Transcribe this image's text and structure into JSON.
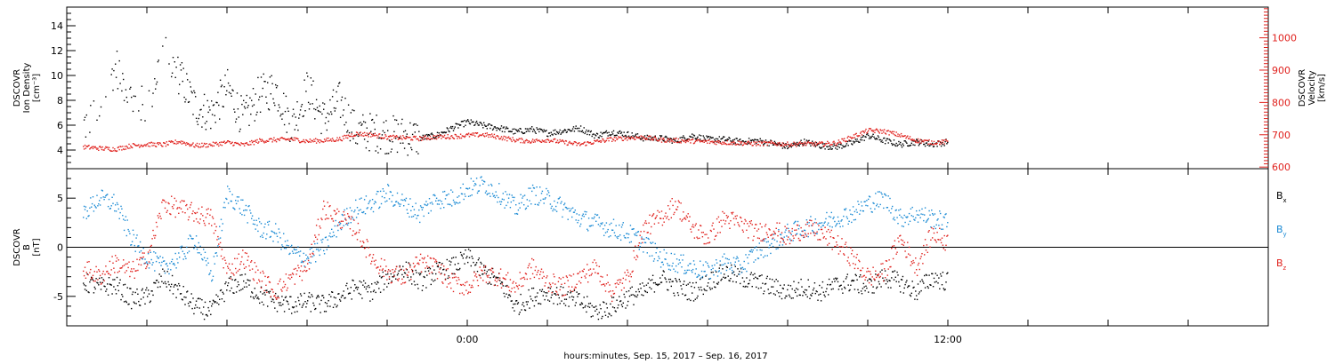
{
  "chart_data": [
    {
      "type": "scatter",
      "panel": "plasma",
      "ylabel_lines": [
        "DSCOVR",
        "Ion Density",
        "[cm⁻³]"
      ],
      "ylim": [
        2.5,
        15.5
      ],
      "yticks": [
        4,
        6,
        8,
        10,
        12,
        14
      ],
      "ylabel_right_lines": [
        "DSCOVR",
        "Velocity",
        "[km/s]"
      ],
      "ylim_right": [
        595,
        1095
      ],
      "yticks_right": [
        600,
        700,
        800,
        900,
        1000
      ],
      "series": [
        {
          "name": "",
          "axis": "left",
          "color": "#000000",
          "x": [
            -12.0,
            -11.5,
            -11.0,
            -10.5,
            -10.0,
            -9.5,
            -9.0,
            -8.5,
            -8.0,
            -7.5,
            -7.0,
            -6.5,
            -6.0,
            -5.5,
            -5.0,
            -4.5,
            -4.0,
            -3.5,
            -3.0,
            -2.5,
            -2.0,
            -1.5,
            -1.0,
            -0.5,
            0.0,
            0.5,
            1.0,
            1.5,
            2.0,
            2.5,
            3.0,
            3.5,
            4.0,
            4.5,
            5.0,
            5.5,
            6.0,
            6.5,
            7.0,
            7.5,
            8.0,
            8.5,
            9.0,
            9.5,
            10.0,
            10.5,
            11.0,
            11.5,
            12.0,
            12.5,
            13.0,
            13.5,
            14.0,
            14.5,
            15.0
          ],
          "y": [
            6.0,
            7.0,
            11.0,
            8.0,
            7.5,
            12.0,
            10.0,
            7.5,
            7.0,
            9.0,
            6.5,
            8.5,
            9.0,
            6.0,
            9.0,
            6.5,
            8.0,
            5.5,
            5.5,
            5.3,
            5.2,
            5.0,
            5.2,
            5.8,
            6.3,
            6.0,
            5.8,
            5.5,
            5.7,
            5.4,
            5.6,
            5.8,
            5.2,
            5.5,
            5.3,
            5.0,
            5.0,
            4.8,
            5.2,
            4.9,
            4.9,
            4.7,
            4.8,
            4.6,
            4.3,
            4.7,
            4.4,
            4.3,
            4.6,
            5.2,
            4.8,
            4.5,
            4.7,
            4.5,
            4.7
          ]
        },
        {
          "name": "",
          "axis": "right",
          "color": "#e0211d",
          "x": [
            -12.0,
            -11.5,
            -11.0,
            -10.5,
            -10.0,
            -9.5,
            -9.0,
            -8.5,
            -8.0,
            -7.5,
            -7.0,
            -6.5,
            -6.0,
            -5.5,
            -5.0,
            -4.5,
            -4.0,
            -3.5,
            -3.0,
            -2.5,
            -2.0,
            -1.5,
            -1.0,
            -0.5,
            0.0,
            0.5,
            1.0,
            1.5,
            2.0,
            2.5,
            3.0,
            3.5,
            4.0,
            4.5,
            5.0,
            5.5,
            6.0,
            6.5,
            7.0,
            7.5,
            8.0,
            8.5,
            9.0,
            9.5,
            10.0,
            10.5,
            11.0,
            11.5,
            12.0,
            12.5,
            13.0,
            13.5,
            14.0,
            14.5,
            15.0
          ],
          "y": [
            664,
            660,
            657,
            668,
            672,
            671,
            681,
            668,
            671,
            678,
            670,
            683,
            686,
            688,
            682,
            684,
            688,
            705,
            702,
            694,
            692,
            690,
            695,
            696,
            700,
            702,
            694,
            685,
            682,
            686,
            678,
            672,
            680,
            688,
            692,
            694,
            686,
            684,
            682,
            680,
            678,
            676,
            674,
            675,
            672,
            674,
            673,
            676,
            695,
            715,
            712,
            700,
            684,
            678,
            680
          ]
        }
      ]
    },
    {
      "type": "scatter",
      "panel": "magnetic-field",
      "ylabel_lines": [
        "DSCOVR",
        "B",
        "[nT]"
      ],
      "ylim": [
        -8,
        8
      ],
      "yticks": [
        -5,
        0,
        5
      ],
      "zero_line": true,
      "series": [
        {
          "name": "Bx",
          "label_main": "B",
          "label_sub": "x",
          "color": "#000000",
          "x": [
            -12.0,
            -11.5,
            -11.0,
            -10.5,
            -10.0,
            -9.5,
            -9.0,
            -8.5,
            -8.0,
            -7.5,
            -7.0,
            -6.5,
            -6.0,
            -5.5,
            -5.0,
            -4.5,
            -4.0,
            -3.5,
            -3.0,
            -2.5,
            -2.0,
            -1.5,
            -1.0,
            -0.5,
            0.0,
            0.5,
            1.0,
            1.5,
            2.0,
            2.5,
            3.0,
            3.5,
            4.0,
            4.5,
            5.0,
            5.5,
            6.0,
            6.5,
            7.0,
            7.5,
            8.0,
            8.5,
            9.0,
            9.5,
            10.0,
            10.5,
            11.0,
            11.5,
            12.0,
            12.5,
            13.0,
            13.5,
            14.0,
            14.5,
            15.0
          ],
          "y": [
            -3.5,
            -4.0,
            -3.8,
            -5.2,
            -5.0,
            -3.0,
            -4.5,
            -6.0,
            -6.5,
            -4.0,
            -3.5,
            -4.8,
            -5.5,
            -5.8,
            -5.5,
            -5.8,
            -5.0,
            -4.0,
            -4.5,
            -3.0,
            -2.0,
            -3.5,
            -2.5,
            -2.0,
            -1.0,
            -2.5,
            -3.5,
            -6.0,
            -5.0,
            -4.5,
            -5.0,
            -5.5,
            -6.5,
            -6.0,
            -5.0,
            -4.5,
            -3.0,
            -4.0,
            -4.5,
            -3.5,
            -2.5,
            -3.0,
            -3.5,
            -4.0,
            -4.5,
            -4.0,
            -4.5,
            -3.8,
            -3.5,
            -4.0,
            -3.0,
            -3.5,
            -4.5,
            -3.0,
            -3.5
          ]
        },
        {
          "name": "By",
          "label_main": "B",
          "label_sub": "y",
          "color": "#1a8ad4",
          "x": [
            -12.0,
            -11.5,
            -11.0,
            -10.5,
            -10.0,
            -9.5,
            -9.0,
            -8.5,
            -8.0,
            -7.5,
            -7.0,
            -6.5,
            -6.0,
            -5.5,
            -5.0,
            -4.5,
            -4.0,
            -3.5,
            -3.0,
            -2.5,
            -2.0,
            -1.5,
            -1.0,
            -0.5,
            0.0,
            0.5,
            1.0,
            1.5,
            2.0,
            2.5,
            3.0,
            3.5,
            4.0,
            4.5,
            5.0,
            5.5,
            6.0,
            6.5,
            7.0,
            7.5,
            8.0,
            8.5,
            9.0,
            9.5,
            10.0,
            10.5,
            11.0,
            11.5,
            12.0,
            12.5,
            13.0,
            13.5,
            14.0,
            14.5,
            15.0
          ],
          "y": [
            3.5,
            5.0,
            4.5,
            1.0,
            -1.0,
            -2.0,
            -1.0,
            1.0,
            -3.0,
            5.5,
            4.0,
            2.0,
            1.5,
            -0.5,
            -1.0,
            0.0,
            2.5,
            4.0,
            4.5,
            5.5,
            4.5,
            3.5,
            5.0,
            5.0,
            6.0,
            6.5,
            5.5,
            4.0,
            5.5,
            5.0,
            4.0,
            3.0,
            2.5,
            2.0,
            1.5,
            0.5,
            -1.0,
            -1.5,
            -2.0,
            -2.5,
            -1.5,
            -2.0,
            -0.5,
            0.5,
            1.5,
            2.0,
            2.5,
            3.0,
            3.5,
            4.5,
            5.0,
            3.0,
            3.5,
            3.0,
            2.5
          ]
        },
        {
          "name": "Bz",
          "label_main": "B",
          "label_sub": "z",
          "color": "#e0211d",
          "x": [
            -12.0,
            -11.5,
            -11.0,
            -10.5,
            -10.0,
            -9.5,
            -9.0,
            -8.5,
            -8.0,
            -7.5,
            -7.0,
            -6.5,
            -6.0,
            -5.5,
            -5.0,
            -4.5,
            -4.0,
            -3.5,
            -3.0,
            -2.5,
            -2.0,
            -1.5,
            -1.0,
            -0.5,
            0.0,
            0.5,
            1.0,
            1.5,
            2.0,
            2.5,
            3.0,
            3.5,
            4.0,
            4.5,
            5.0,
            5.5,
            6.0,
            6.5,
            7.0,
            7.5,
            8.0,
            8.5,
            9.0,
            9.5,
            10.0,
            10.5,
            11.0,
            11.5,
            12.0,
            12.5,
            13.0,
            13.5,
            14.0,
            14.5,
            15.0
          ],
          "y": [
            -2.0,
            -3.0,
            -1.5,
            -2.5,
            -1.0,
            4.5,
            4.0,
            3.5,
            3.0,
            -2.5,
            -1.0,
            -3.0,
            -4.5,
            -3.0,
            -2.0,
            4.0,
            3.0,
            2.0,
            -1.0,
            -2.5,
            -3.0,
            -1.5,
            -2.0,
            -3.5,
            -4.0,
            -2.5,
            -3.0,
            -4.0,
            -2.0,
            -3.5,
            -4.0,
            -3.0,
            -2.0,
            -4.5,
            -3.0,
            2.0,
            3.0,
            4.5,
            2.0,
            1.0,
            3.0,
            2.5,
            1.5,
            2.0,
            1.0,
            2.0,
            1.5,
            0.5,
            -1.0,
            -3.0,
            -2.5,
            1.0,
            -2.0,
            1.5,
            0.5
          ]
        }
      ]
    }
  ],
  "x_axis": {
    "min": -12.5,
    "max": 25,
    "tick_step": 2.5,
    "tick_labels": [
      {
        "value": 0,
        "label": "0:00"
      },
      {
        "value": 15,
        "label": "12:00"
      }
    ],
    "xlabel": "hours:minutes, Sep. 15, 2017 – Sep. 16, 2017"
  }
}
